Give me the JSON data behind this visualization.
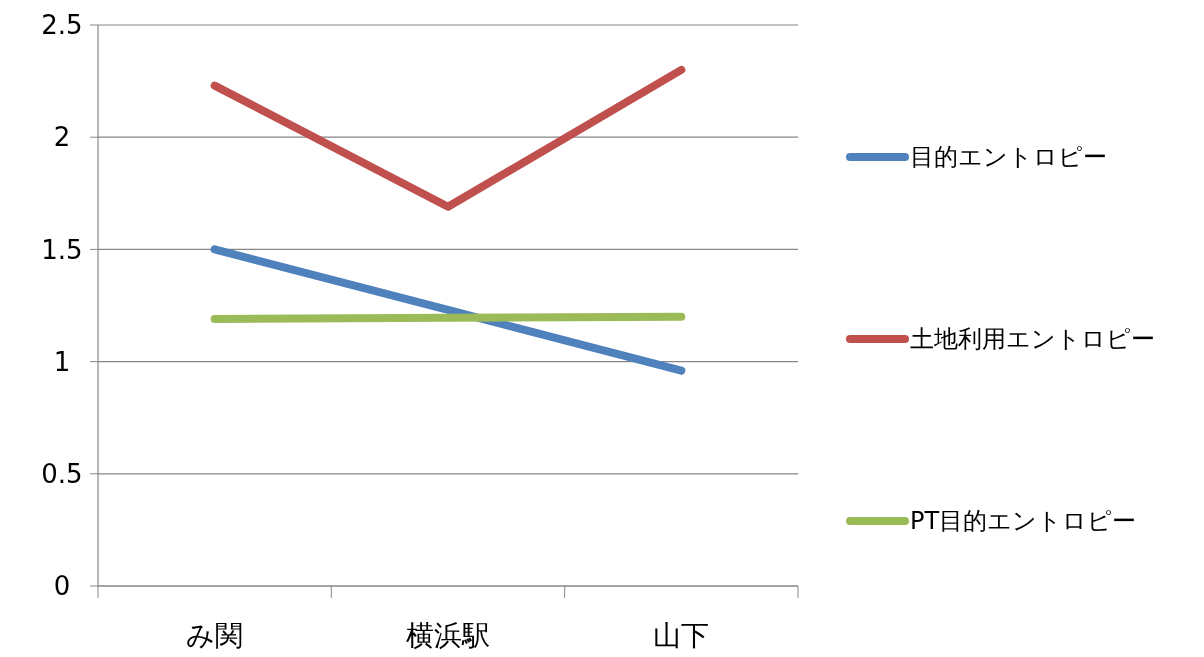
{
  "chart_data": {
    "type": "line",
    "categories": [
      "み関",
      "横浜駅",
      "山下"
    ],
    "series": [
      {
        "name": "目的エントロピー",
        "color": "#4f81bd",
        "values": [
          1.5,
          1.23,
          0.96
        ]
      },
      {
        "name": "土地利用エントロピー",
        "color": "#c0504d",
        "values": [
          2.23,
          1.69,
          2.3
        ]
      },
      {
        "name": "PT目的エントロピー",
        "color": "#9bbb59",
        "values": [
          1.19,
          1.195,
          1.2
        ]
      }
    ],
    "ylim": [
      0,
      2.5
    ],
    "yticks": [
      0,
      0.5,
      1,
      1.5,
      2,
      2.5
    ],
    "grid": "y",
    "legend": "right",
    "marker": "none",
    "line_style": "solid"
  }
}
